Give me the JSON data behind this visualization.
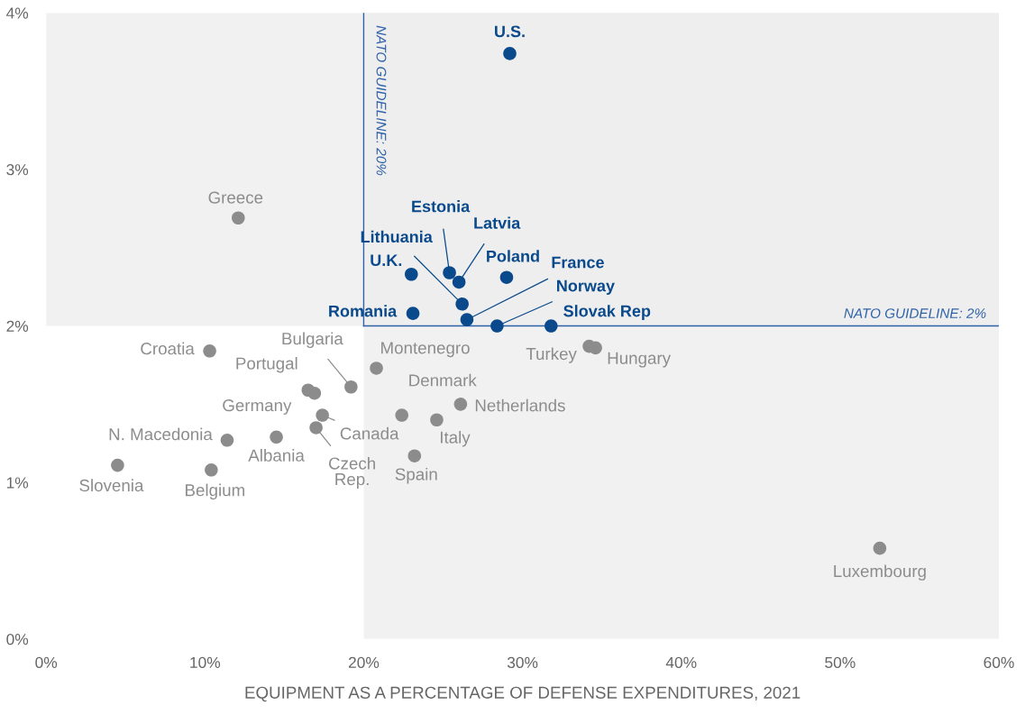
{
  "chart_data": {
    "type": "scatter",
    "xlabel": "EQUIPMENT AS A PERCENTAGE OF DEFENSE EXPENDITURES, 2021",
    "xlim": [
      0,
      60
    ],
    "ylim": [
      0,
      4
    ],
    "xticks": [
      {
        "value": 0,
        "label": "0%"
      },
      {
        "value": 10,
        "label": "10%"
      },
      {
        "value": 20,
        "label": "20%"
      },
      {
        "value": 30,
        "label": "30%"
      },
      {
        "value": 40,
        "label": "40%"
      },
      {
        "value": 50,
        "label": "50%"
      },
      {
        "value": 60,
        "label": "60%"
      }
    ],
    "yticks": [
      {
        "value": 0,
        "label": "0%"
      },
      {
        "value": 1,
        "label": "1%"
      },
      {
        "value": 2,
        "label": "2%"
      },
      {
        "value": 3,
        "label": "3%"
      },
      {
        "value": 4,
        "label": "4%"
      }
    ],
    "marker": "circle",
    "grid": false,
    "legend": false,
    "series": [
      {
        "color": "#0a4a8c",
        "x": [
          29.2,
          25.4,
          26.0,
          29.0,
          23.0,
          26.2,
          26.5,
          28.4,
          31.8,
          23.1
        ],
        "values": [
          3.74,
          2.34,
          2.28,
          2.31,
          2.33,
          2.14,
          2.04,
          2.0,
          2.0,
          2.08
        ]
      },
      {
        "color": "#8c8c8c",
        "x": [
          12.1,
          10.3,
          16.5,
          16.9,
          19.2,
          20.8,
          17.4,
          17.0,
          14.5,
          11.4,
          4.5,
          10.4,
          22.4,
          26.1,
          24.6,
          23.2,
          34.2,
          34.6,
          52.5
        ],
        "values": [
          2.69,
          1.84,
          1.59,
          1.57,
          1.61,
          1.73,
          1.43,
          1.35,
          1.29,
          1.27,
          1.11,
          1.08,
          1.43,
          1.5,
          1.4,
          1.17,
          1.87,
          1.86,
          0.58
        ]
      }
    ],
    "bands": [
      {
        "axis": "y",
        "from": 2,
        "to": 4,
        "color": "#ececec"
      },
      {
        "axis": "x",
        "from": 20,
        "to": 60,
        "color": "#ececec"
      }
    ],
    "ref_lines": [
      {
        "axis": "x",
        "value": 20,
        "label": "NATO GUIDELINE: 20%",
        "color": "#2e62a8"
      },
      {
        "axis": "y",
        "value": 2,
        "label": "NATO GUIDELINE: 2%",
        "color": "#2e62a8"
      }
    ],
    "annotations": [
      {
        "text": "U.S.",
        "x": 29.2,
        "y": 3.74
      },
      {
        "text": "Estonia",
        "x": 25.4,
        "y": 2.34
      },
      {
        "text": "Latvia",
        "x": 26.0,
        "y": 2.28
      },
      {
        "text": "Poland",
        "x": 29.0,
        "y": 2.31
      },
      {
        "text": "U.K.",
        "x": 23.0,
        "y": 2.33
      },
      {
        "text": "Lithuania",
        "x": 26.2,
        "y": 2.14
      },
      {
        "text": "France",
        "x": 26.5,
        "y": 2.04
      },
      {
        "text": "Norway",
        "x": 28.4,
        "y": 2.0
      },
      {
        "text": "Slovak Rep",
        "x": 31.8,
        "y": 2.0
      },
      {
        "text": "Romania",
        "x": 23.1,
        "y": 2.08
      },
      {
        "text": "Greece",
        "x": 12.1,
        "y": 2.69
      },
      {
        "text": "Croatia",
        "x": 10.3,
        "y": 1.84
      },
      {
        "text": "Portugal",
        "x": 16.5,
        "y": 1.59
      },
      {
        "text": "Germany",
        "x": 16.9,
        "y": 1.57
      },
      {
        "text": "Bulgaria",
        "x": 19.2,
        "y": 1.61
      },
      {
        "text": "Montenegro",
        "x": 20.8,
        "y": 1.73
      },
      {
        "text": "Canada",
        "x": 17.4,
        "y": 1.43
      },
      {
        "text": "Czech\nRep.",
        "x": 17.0,
        "y": 1.35
      },
      {
        "text": "Albania",
        "x": 14.5,
        "y": 1.29
      },
      {
        "text": "N. Macedonia",
        "x": 11.4,
        "y": 1.27
      },
      {
        "text": "Slovenia",
        "x": 4.5,
        "y": 1.11
      },
      {
        "text": "Belgium",
        "x": 10.4,
        "y": 1.08
      },
      {
        "text": "Denmark",
        "x": 22.4,
        "y": 1.43
      },
      {
        "text": "Netherlands",
        "x": 26.1,
        "y": 1.5
      },
      {
        "text": "Italy",
        "x": 24.6,
        "y": 1.4
      },
      {
        "text": "Spain",
        "x": 23.2,
        "y": 1.17
      },
      {
        "text": "Turkey",
        "x": 34.2,
        "y": 1.87
      },
      {
        "text": "Hungary",
        "x": 34.6,
        "y": 1.86
      },
      {
        "text": "Luxembourg",
        "x": 52.5,
        "y": 0.58
      }
    ]
  }
}
